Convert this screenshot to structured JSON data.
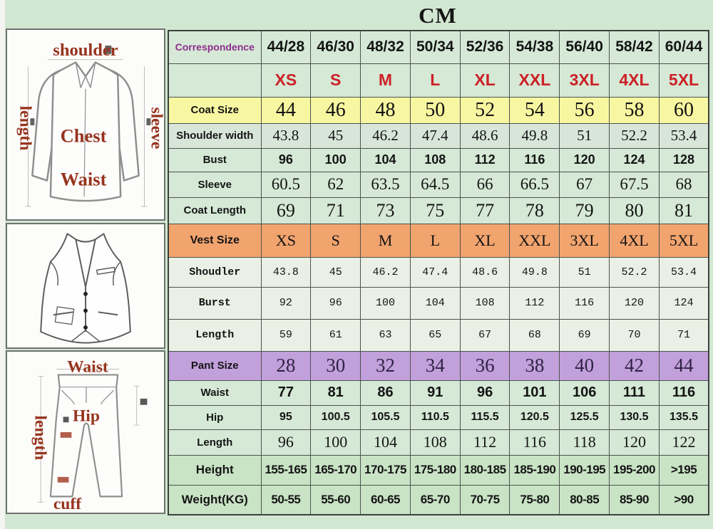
{
  "title": "CM",
  "chart_data": {
    "type": "table",
    "title": "CM",
    "rows": [
      {
        "label": "Correspondence",
        "values": [
          "44/28",
          "46/30",
          "48/32",
          "50/34",
          "52/36",
          "54/38",
          "56/40",
          "58/42",
          "60/44"
        ]
      },
      {
        "label": "",
        "values": [
          "XS",
          "S",
          "M",
          "L",
          "XL",
          "XXL",
          "3XL",
          "4XL",
          "5XL"
        ]
      },
      {
        "label": "Coat Size",
        "values": [
          "44",
          "46",
          "48",
          "50",
          "52",
          "54",
          "56",
          "58",
          "60"
        ]
      },
      {
        "label": "Shoulder width",
        "values": [
          "43.8",
          "45",
          "46.2",
          "47.4",
          "48.6",
          "49.8",
          "51",
          "52.2",
          "53.4"
        ]
      },
      {
        "label": "Bust",
        "values": [
          "96",
          "100",
          "104",
          "108",
          "112",
          "116",
          "120",
          "124",
          "128"
        ]
      },
      {
        "label": "Sleeve",
        "values": [
          "60.5",
          "62",
          "63.5",
          "64.5",
          "66",
          "66.5",
          "67",
          "67.5",
          "68"
        ]
      },
      {
        "label": "Coat Length",
        "values": [
          "69",
          "71",
          "73",
          "75",
          "77",
          "78",
          "79",
          "80",
          "81"
        ]
      },
      {
        "label": "Vest Size",
        "values": [
          "XS",
          "S",
          "M",
          "L",
          "XL",
          "XXL",
          "3XL",
          "4XL",
          "5XL"
        ]
      },
      {
        "label": "Shoudler",
        "values": [
          "43.8",
          "45",
          "46.2",
          "47.4",
          "48.6",
          "49.8",
          "51",
          "52.2",
          "53.4"
        ]
      },
      {
        "label": "Burst",
        "values": [
          "92",
          "96",
          "100",
          "104",
          "108",
          "112",
          "116",
          "120",
          "124"
        ]
      },
      {
        "label": "Length",
        "values": [
          "59",
          "61",
          "63",
          "65",
          "67",
          "68",
          "69",
          "70",
          "71"
        ]
      },
      {
        "label": "Pant Size",
        "values": [
          "28",
          "30",
          "32",
          "34",
          "36",
          "38",
          "40",
          "42",
          "44"
        ]
      },
      {
        "label": "Waist",
        "values": [
          "77",
          "81",
          "86",
          "91",
          "96",
          "101",
          "106",
          "111",
          "116"
        ]
      },
      {
        "label": "Hip",
        "values": [
          "95",
          "100.5",
          "105.5",
          "110.5",
          "115.5",
          "120.5",
          "125.5",
          "130.5",
          "135.5"
        ]
      },
      {
        "label": "Length",
        "values": [
          "96",
          "100",
          "104",
          "108",
          "112",
          "116",
          "118",
          "120",
          "122"
        ]
      },
      {
        "label": "Height",
        "values": [
          "155-165",
          "165-170",
          "170-175",
          "175-180",
          "180-185",
          "185-190",
          "190-195",
          "195-200",
          ">195"
        ]
      },
      {
        "label": "Weight(KG)",
        "values": [
          "50-55",
          "55-60",
          "60-65",
          "65-70",
          "70-75",
          "75-80",
          "80-85",
          "85-90",
          ">90"
        ]
      }
    ]
  },
  "colors": {
    "page_bg": "#d2e7d2",
    "coat_row_yellow": "#f8f7a1",
    "vest_row_orange": "#f2a46e",
    "pant_row_purple": "#c2a0dc",
    "vest_data_bg": "#eaf0e5",
    "height_weight_green": "#c9e3c5",
    "green_border": "#2e6b30",
    "size_letters_red": "#cc2127",
    "correspondence_purple": "#8e2d8e",
    "diagram_label_red": "#97341f"
  },
  "diagrams": {
    "jacket": {
      "shoulder": "shoulder",
      "length": "length",
      "sleeve": "sleeve",
      "chest": "Chest",
      "waist": "Waist"
    },
    "pants": {
      "waist": "Waist",
      "length": "length",
      "hip": "Hip",
      "cuff": "cuff"
    }
  }
}
